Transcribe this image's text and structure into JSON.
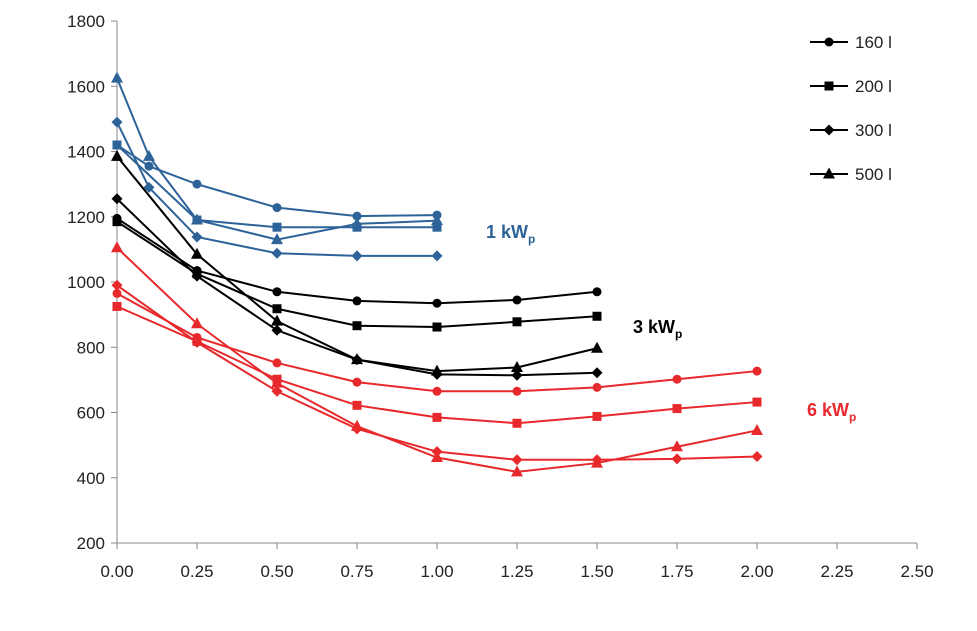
{
  "chart_data": {
    "type": "line",
    "title": "",
    "xlabel": "",
    "ylabel": "",
    "xlim": [
      0,
      2.5
    ],
    "ylim": [
      200,
      1800
    ],
    "x_ticks": [
      "0.00",
      "0.25",
      "0.50",
      "0.75",
      "1.00",
      "1.25",
      "1.50",
      "1.75",
      "2.00",
      "2.25",
      "2.50"
    ],
    "y_ticks": [
      "200",
      "400",
      "600",
      "800",
      "1000",
      "1200",
      "1400",
      "1600",
      "1800"
    ],
    "grid": false,
    "legend": [
      {
        "label": "160 l",
        "marker": "circle"
      },
      {
        "label": "200 l",
        "marker": "square"
      },
      {
        "label": "300 l",
        "marker": "diamond"
      },
      {
        "label": "500 l",
        "marker": "triangle"
      }
    ],
    "groups": [
      {
        "label_main": "1 kW",
        "label_sub": "p",
        "color": "#2e6399",
        "series": [
          {
            "name": "160 l",
            "marker": "circle",
            "x": [
              0,
              0.1,
              0.25,
              0.5,
              0.75,
              1.0
            ],
            "y": [
              1420,
              1355,
              1300,
              1228,
              1202,
              1205
            ]
          },
          {
            "name": "200 l",
            "marker": "square",
            "x": [
              0,
              0.25,
              0.5,
              0.75,
              1.0
            ],
            "y": [
              1420,
              1190,
              1168,
              1168,
              1168
            ]
          },
          {
            "name": "300 l",
            "marker": "diamond",
            "x": [
              0,
              0.1,
              0.25,
              0.5,
              0.75,
              1.0
            ],
            "y": [
              1490,
              1290,
              1138,
              1088,
              1080,
              1080
            ]
          },
          {
            "name": "500 l",
            "marker": "triangle",
            "x": [
              0,
              0.1,
              0.25,
              0.5,
              0.75,
              1.0
            ],
            "y": [
              1625,
              1385,
              1190,
              1130,
              1178,
              1188
            ]
          }
        ]
      },
      {
        "label_main": "3 kW",
        "label_sub": "p",
        "color": "#000000",
        "series": [
          {
            "name": "160 l",
            "marker": "circle",
            "x": [
              0,
              0.25,
              0.5,
              0.75,
              1.0,
              1.25,
              1.5
            ],
            "y": [
              1195,
              1035,
              970,
              942,
              935,
              945,
              970
            ]
          },
          {
            "name": "200 l",
            "marker": "square",
            "x": [
              0,
              0.25,
              0.5,
              0.75,
              1.0,
              1.25,
              1.5
            ],
            "y": [
              1185,
              1025,
              918,
              866,
              862,
              878,
              895
            ]
          },
          {
            "name": "300 l",
            "marker": "diamond",
            "x": [
              0,
              0.25,
              0.5,
              0.75,
              1.0,
              1.25,
              1.5
            ],
            "y": [
              1255,
              1018,
              852,
              762,
              717,
              714,
              722
            ]
          },
          {
            "name": "500 l",
            "marker": "triangle",
            "x": [
              0,
              0.25,
              0.5,
              0.75,
              1.0,
              1.25,
              1.5
            ],
            "y": [
              1385,
              1085,
              880,
              762,
              727,
              738,
              797
            ]
          }
        ]
      },
      {
        "label_main": "6 kW",
        "label_sub": "p",
        "color": "#e8292c",
        "series": [
          {
            "name": "160 l",
            "marker": "circle",
            "x": [
              0,
              0.25,
              0.5,
              0.75,
              1.0,
              1.25,
              1.5,
              1.75,
              2.0
            ],
            "y": [
              965,
              830,
              752,
              693,
              665,
              665,
              677,
              702,
              727
            ]
          },
          {
            "name": "200 l",
            "marker": "square",
            "x": [
              0,
              0.25,
              0.5,
              0.75,
              1.0,
              1.25,
              1.5,
              1.75,
              2.0
            ],
            "y": [
              925,
              818,
              702,
              622,
              585,
              567,
              588,
              612,
              632
            ]
          },
          {
            "name": "300 l",
            "marker": "diamond",
            "x": [
              0,
              0.25,
              0.5,
              0.75,
              1.0,
              1.25,
              1.5,
              1.75,
              2.0
            ],
            "y": [
              990,
              815,
              665,
              550,
              480,
              455,
              455,
              458,
              465
            ]
          },
          {
            "name": "500 l",
            "marker": "triangle",
            "x": [
              0,
              0.25,
              0.5,
              0.75,
              1.0,
              1.25,
              1.5,
              1.75,
              2.0
            ],
            "y": [
              1105,
              872,
              690,
              558,
              462,
              418,
              445,
              495,
              545
            ]
          }
        ]
      }
    ]
  }
}
